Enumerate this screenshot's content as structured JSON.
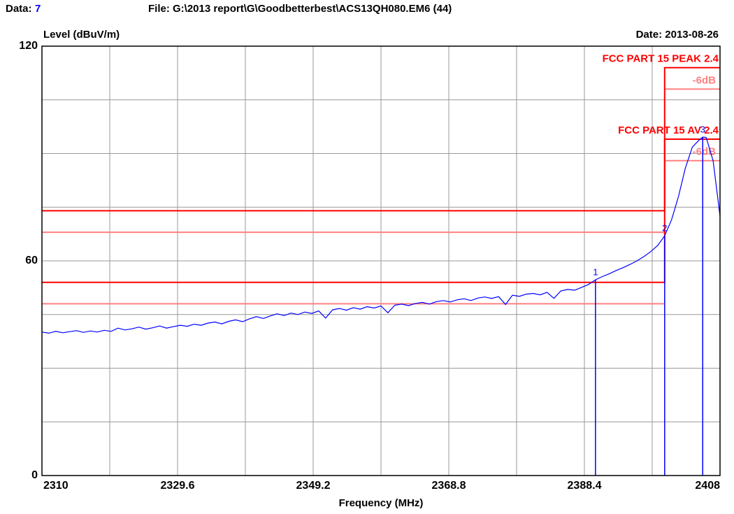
{
  "chart_data": {
    "type": "line",
    "data_label": "Data:",
    "data_number": 7,
    "title": "File: G:\\2013 report\\G\\Goodbetterbest\\ACS13QH080.EM6  (44)",
    "y_label": "Level (dBuV/m)",
    "date": "Date: 2013-08-26",
    "x_label": "Frequency (MHz)",
    "xlim": [
      2310,
      2408
    ],
    "ylim": [
      0,
      120
    ],
    "xticks": [
      2310,
      2329.6,
      2349.2,
      2368.8,
      2388.4,
      2408
    ],
    "yticks": [
      0,
      60,
      120
    ],
    "xgrid": [
      2319.8,
      2329.6,
      2339.4,
      2349.2,
      2359,
      2368.8,
      2378.6,
      2388.4,
      2398.2
    ],
    "ygrid": [
      15,
      30,
      45,
      60,
      75,
      90,
      105
    ],
    "grid": true,
    "series": [
      {
        "color": "#0000ff",
        "x": [
          2310,
          2311,
          2312,
          2313,
          2314,
          2315,
          2316,
          2317,
          2318,
          2319,
          2320,
          2321,
          2322,
          2323,
          2324,
          2325,
          2326,
          2327,
          2328,
          2329,
          2330,
          2331,
          2332,
          2333,
          2334,
          2335,
          2336,
          2337,
          2338,
          2339,
          2340,
          2341,
          2342,
          2343,
          2344,
          2345,
          2346,
          2347,
          2348,
          2349,
          2350,
          2351,
          2352,
          2353,
          2354,
          2355,
          2356,
          2357,
          2358,
          2359,
          2360,
          2361,
          2362,
          2363,
          2364,
          2365,
          2366,
          2367,
          2368,
          2369,
          2370,
          2371,
          2372,
          2373,
          2374,
          2375,
          2376,
          2377,
          2378,
          2379,
          2380,
          2381,
          2382,
          2383,
          2384,
          2385,
          2386,
          2387,
          2388,
          2389,
          2390,
          2391,
          2392,
          2393,
          2394,
          2395,
          2396,
          2397,
          2398,
          2399,
          2400,
          2401,
          2402,
          2403,
          2404,
          2405,
          2405.5,
          2406,
          2407,
          2408
        ],
        "values": [
          40.1,
          39.8,
          40.3,
          39.9,
          40.2,
          40.5,
          40.0,
          40.4,
          40.1,
          40.6,
          40.3,
          41.2,
          40.7,
          41.0,
          41.5,
          40.9,
          41.3,
          41.8,
          41.2,
          41.6,
          42.0,
          41.7,
          42.3,
          42.0,
          42.6,
          42.9,
          42.4,
          43.1,
          43.5,
          43.0,
          43.8,
          44.4,
          43.9,
          44.6,
          45.2,
          44.7,
          45.4,
          45.0,
          45.7,
          45.3,
          46.0,
          44.0,
          46.3,
          46.7,
          46.2,
          46.9,
          46.5,
          47.2,
          46.8,
          47.4,
          45.5,
          47.6,
          47.9,
          47.5,
          48.1,
          48.4,
          47.9,
          48.6,
          48.9,
          48.5,
          49.1,
          49.4,
          48.9,
          49.6,
          49.9,
          49.5,
          50.0,
          47.8,
          50.4,
          50.1,
          50.7,
          50.9,
          50.5,
          51.2,
          49.5,
          51.6,
          52.0,
          51.8,
          52.6,
          53.4,
          54.7,
          55.6,
          56.4,
          57.3,
          58.1,
          59.0,
          60.0,
          61.2,
          62.6,
          64.3,
          67.0,
          71.5,
          78.0,
          86.0,
          91.8,
          93.8,
          94.6,
          94.5,
          88.0,
          72.5
        ]
      }
    ],
    "limits": [
      {
        "name": "FCC PART 15 PEAK 2.4",
        "color": "#ff0000",
        "x": [
          2310,
          2400,
          2400,
          2408
        ],
        "values": [
          74,
          74,
          114,
          114
        ],
        "margin_label": "-6dB",
        "margin_color": "#ff8080",
        "margin_values": [
          68,
          68,
          108,
          108
        ]
      },
      {
        "name": "FCC PART 15  AV 2.4",
        "color": "#ff0000",
        "x": [
          2310,
          2400,
          2400,
          2408
        ],
        "values": [
          54,
          54,
          94,
          94
        ],
        "margin_label": "-6dB",
        "margin_color": "#ff8080",
        "margin_values": [
          48,
          48,
          88,
          88
        ]
      }
    ],
    "markers": [
      {
        "label": "1",
        "x": 2390,
        "value": 54.7
      },
      {
        "label": "2",
        "x": 2400,
        "value": 67.0
      },
      {
        "label": "3",
        "x": 2405.5,
        "value": 94.6
      }
    ]
  }
}
